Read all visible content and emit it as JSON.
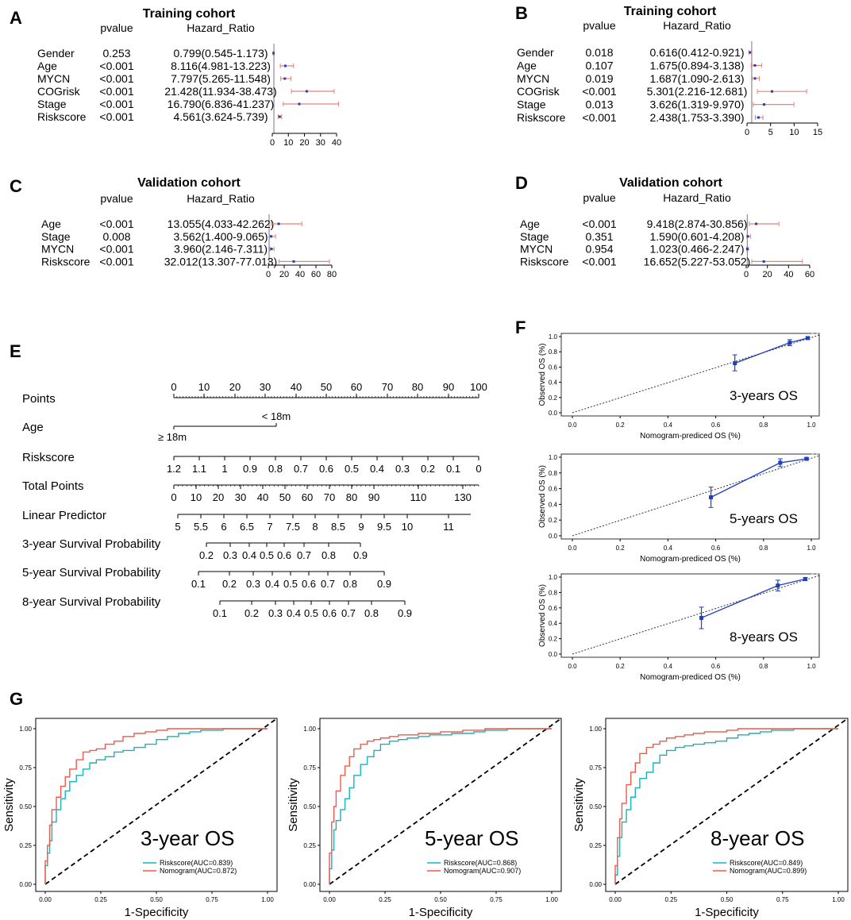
{
  "colors": {
    "ci": "#e8827a",
    "point": "#1f3fbf",
    "cyan": "#17b3bd",
    "red": "#f05a4a",
    "calib": "#1f3fbf"
  },
  "chart_data": [
    {
      "panel": "A",
      "type": "forest",
      "title": "Training cohort",
      "col_p": "pvalue",
      "col_hr": "Hazard_Ratio",
      "xlim": [
        0,
        40
      ],
      "xticks": [
        0,
        10,
        20,
        30,
        40
      ],
      "rows": [
        {
          "label": "Gender",
          "p": "0.253",
          "hr_text": "0.799(0.545-1.173)",
          "hr": 0.799,
          "lo": 0.545,
          "hi": 1.173
        },
        {
          "label": "Age",
          "p": "<0.001",
          "hr_text": "8.116(4.981-13.223)",
          "hr": 8.116,
          "lo": 4.981,
          "hi": 13.223
        },
        {
          "label": "MYCN",
          "p": "<0.001",
          "hr_text": "7.797(5.265-11.548)",
          "hr": 7.797,
          "lo": 5.265,
          "hi": 11.548
        },
        {
          "label": "COGrisk",
          "p": "<0.001",
          "hr_text": "21.428(11.934-38.473)",
          "hr": 21.428,
          "lo": 11.934,
          "hi": 38.473
        },
        {
          "label": "Stage",
          "p": "<0.001",
          "hr_text": "16.790(6.836-41.237)",
          "hr": 16.79,
          "lo": 6.836,
          "hi": 41.237
        },
        {
          "label": "Riskscore",
          "p": "<0.001",
          "hr_text": "4.561(3.624-5.739)",
          "hr": 4.561,
          "lo": 3.624,
          "hi": 5.739
        }
      ]
    },
    {
      "panel": "B",
      "type": "forest",
      "title": "Training cohort",
      "col_p": "pvalue",
      "col_hr": "Hazard_Ratio",
      "xlim": [
        0,
        15
      ],
      "xticks": [
        0,
        5,
        10,
        15
      ],
      "rows": [
        {
          "label": "Gender",
          "p": "0.018",
          "hr_text": "0.616(0.412-0.921)",
          "hr": 0.616,
          "lo": 0.412,
          "hi": 0.921
        },
        {
          "label": "Age",
          "p": "0.107",
          "hr_text": "1.675(0.894-3.138)",
          "hr": 1.675,
          "lo": 0.894,
          "hi": 3.138
        },
        {
          "label": "MYCN",
          "p": "0.019",
          "hr_text": "1.687(1.090-2.613)",
          "hr": 1.687,
          "lo": 1.09,
          "hi": 2.613
        },
        {
          "label": "COGrisk",
          "p": "<0.001",
          "hr_text": "5.301(2.216-12.681)",
          "hr": 5.301,
          "lo": 2.216,
          "hi": 12.681
        },
        {
          "label": "Stage",
          "p": "0.013",
          "hr_text": "3.626(1.319-9.970)",
          "hr": 3.626,
          "lo": 1.319,
          "hi": 9.97
        },
        {
          "label": "Riskscore",
          "p": "<0.001",
          "hr_text": "2.438(1.753-3.390)",
          "hr": 2.438,
          "lo": 1.753,
          "hi": 3.39
        }
      ]
    },
    {
      "panel": "C",
      "type": "forest",
      "title": "Validation cohort",
      "col_p": "pvalue",
      "col_hr": "Hazard_Ratio",
      "xlim": [
        0,
        80
      ],
      "xticks": [
        0,
        20,
        40,
        60,
        80
      ],
      "rows": [
        {
          "label": "Age",
          "p": "<0.001",
          "hr_text": "13.055(4.033-42.262)",
          "hr": 13.055,
          "lo": 4.033,
          "hi": 42.262
        },
        {
          "label": "Stage",
          "p": "0.008",
          "hr_text": "3.562(1.400-9.065)",
          "hr": 3.562,
          "lo": 1.4,
          "hi": 9.065
        },
        {
          "label": "MYCN",
          "p": "<0.001",
          "hr_text": "3.960(2.146-7.311)",
          "hr": 3.96,
          "lo": 2.146,
          "hi": 7.311
        },
        {
          "label": "Riskscore",
          "p": "<0.001",
          "hr_text": "32.012(13.307-77.013)",
          "hr": 32.012,
          "lo": 13.307,
          "hi": 77.013
        }
      ]
    },
    {
      "panel": "D",
      "type": "forest",
      "title": "Validation cohort",
      "col_p": "pvalue",
      "col_hr": "Hazard_Ratio",
      "xlim": [
        0,
        60
      ],
      "xticks": [
        0,
        20,
        40,
        60
      ],
      "rows": [
        {
          "label": "Age",
          "p": "<0.001",
          "hr_text": "9.418(2.874-30.856)",
          "hr": 9.418,
          "lo": 2.874,
          "hi": 30.856
        },
        {
          "label": "Stage",
          "p": "0.351",
          "hr_text": "1.590(0.601-4.208)",
          "hr": 1.59,
          "lo": 0.601,
          "hi": 4.208
        },
        {
          "label": "MYCN",
          "p": "0.954",
          "hr_text": "1.023(0.466-2.247)",
          "hr": 1.023,
          "lo": 0.466,
          "hi": 2.247
        },
        {
          "label": "Riskscore",
          "p": "<0.001",
          "hr_text": "16.652(5.227-53.052)",
          "hr": 16.652,
          "lo": 5.227,
          "hi": 53.052
        }
      ]
    },
    {
      "panel": "E",
      "type": "nomogram",
      "scales": [
        {
          "label": "Points",
          "ticks": [
            "0",
            "10",
            "20",
            "30",
            "40",
            "50",
            "60",
            "70",
            "80",
            "90",
            "100"
          ]
        },
        {
          "label": "Age",
          "ticks": [
            "< 18m",
            "≥ 18m"
          ]
        },
        {
          "label": "Riskscore",
          "ticks": [
            "1.2",
            "1.1",
            "1",
            "0.9",
            "0.8",
            "0.7",
            "0.6",
            "0.5",
            "0.4",
            "0.3",
            "0.2",
            "0.1",
            "0"
          ]
        },
        {
          "label": "Total Points",
          "ticks": [
            "0",
            "10",
            "20",
            "30",
            "40",
            "50",
            "60",
            "70",
            "80",
            "90",
            "110",
            "130"
          ]
        },
        {
          "label": "Linear Predictor",
          "ticks": [
            "5",
            "5.5",
            "6",
            "6.5",
            "7",
            "7.5",
            "8",
            "8.5",
            "9",
            "9.5",
            "10",
            "11"
          ]
        },
        {
          "label": "3-year Survival Probability",
          "ticks": [
            "0.2",
            "0.3",
            "0.4",
            "0.5",
            "0.6",
            "0.7",
            "0.8",
            "0.9"
          ]
        },
        {
          "label": "5-year Survival Probability",
          "ticks": [
            "0.1",
            "0.2",
            "0.3",
            "0.4",
            "0.5",
            "0.6",
            "0.7",
            "0.8",
            "0.9"
          ]
        },
        {
          "label": "8-year Survival Probability",
          "ticks": [
            "0.1",
            "0.2",
            "0.3",
            "0.4",
            "0.5",
            "0.6",
            "0.7",
            "0.8",
            "0.9"
          ]
        }
      ]
    },
    {
      "panel": "F",
      "type": "calibration",
      "xlabel": "Nomogram-prediced OS (%)",
      "ylabel": "Observed OS (%)",
      "xlim": [
        0,
        1
      ],
      "ylim": [
        0,
        1
      ],
      "xticks": [
        "0.0",
        "0.2",
        "0.4",
        "0.6",
        "0.8",
        "1.0"
      ],
      "yticks": [
        "0.0",
        "0.2",
        "0.4",
        "0.6",
        "0.8",
        "1.0"
      ],
      "plots": [
        {
          "label": "3-years OS",
          "points": [
            {
              "x": 0.68,
              "y": 0.65,
              "lo": 0.55,
              "hi": 0.76
            },
            {
              "x": 0.91,
              "y": 0.92,
              "lo": 0.88,
              "hi": 0.96
            },
            {
              "x": 0.985,
              "y": 0.98,
              "lo": 0.965,
              "hi": 0.995
            }
          ]
        },
        {
          "label": "5-years OS",
          "points": [
            {
              "x": 0.58,
              "y": 0.49,
              "lo": 0.36,
              "hi": 0.62
            },
            {
              "x": 0.87,
              "y": 0.93,
              "lo": 0.88,
              "hi": 0.98
            },
            {
              "x": 0.98,
              "y": 0.98,
              "lo": 0.96,
              "hi": 0.995
            }
          ]
        },
        {
          "label": "8-years OS",
          "points": [
            {
              "x": 0.54,
              "y": 0.47,
              "lo": 0.33,
              "hi": 0.61
            },
            {
              "x": 0.86,
              "y": 0.89,
              "lo": 0.82,
              "hi": 0.96
            },
            {
              "x": 0.975,
              "y": 0.975,
              "lo": 0.955,
              "hi": 0.995
            }
          ]
        }
      ]
    },
    {
      "panel": "G",
      "type": "roc",
      "xlabel": "1-Specificity",
      "ylabel": "Sensitivity",
      "ticks": [
        "0.00",
        "0.25",
        "0.50",
        "0.75",
        "1.00"
      ],
      "plots": [
        {
          "label": "3-year OS",
          "series": [
            {
              "name": "Riskscore(AUC=0.839)",
              "color": "cyan",
              "x": [
                0,
                0.01,
                0.02,
                0.03,
                0.05,
                0.07,
                0.09,
                0.11,
                0.14,
                0.17,
                0.2,
                0.23,
                0.27,
                0.31,
                0.35,
                0.4,
                0.45,
                0.5,
                0.55,
                0.6,
                0.65,
                0.7,
                0.8,
                0.9,
                1
              ],
              "y": [
                0,
                0.12,
                0.2,
                0.28,
                0.4,
                0.48,
                0.55,
                0.6,
                0.66,
                0.7,
                0.74,
                0.78,
                0.8,
                0.82,
                0.85,
                0.86,
                0.88,
                0.9,
                0.93,
                0.95,
                0.97,
                0.98,
                0.99,
                1,
                1
              ]
            },
            {
              "name": "Nomogram(AUC=0.872)",
              "color": "red",
              "x": [
                0,
                0.01,
                0.02,
                0.03,
                0.05,
                0.07,
                0.09,
                0.11,
                0.14,
                0.17,
                0.2,
                0.23,
                0.27,
                0.31,
                0.35,
                0.4,
                0.45,
                0.5,
                0.55,
                0.6,
                0.65,
                0.7,
                0.8,
                0.9,
                1
              ],
              "y": [
                0,
                0.15,
                0.25,
                0.38,
                0.48,
                0.56,
                0.63,
                0.69,
                0.74,
                0.8,
                0.85,
                0.86,
                0.87,
                0.9,
                0.92,
                0.95,
                0.97,
                0.98,
                0.99,
                1,
                1,
                1,
                1,
                1,
                1
              ]
            }
          ]
        },
        {
          "label": "5-year OS",
          "series": [
            {
              "name": "Riskscore(AUC=0.868)",
              "color": "cyan",
              "x": [
                0,
                0.01,
                0.02,
                0.03,
                0.05,
                0.07,
                0.09,
                0.11,
                0.14,
                0.17,
                0.2,
                0.23,
                0.27,
                0.31,
                0.35,
                0.4,
                0.45,
                0.5,
                0.55,
                0.6,
                0.65,
                0.7,
                0.8,
                0.9,
                1
              ],
              "y": [
                0,
                0.1,
                0.22,
                0.35,
                0.41,
                0.48,
                0.55,
                0.62,
                0.7,
                0.77,
                0.82,
                0.86,
                0.9,
                0.92,
                0.93,
                0.94,
                0.95,
                0.96,
                0.96,
                0.97,
                0.97,
                0.98,
                0.99,
                1,
                1
              ]
            },
            {
              "name": "Nomogram(AUC=0.907)",
              "color": "red",
              "x": [
                0,
                0.01,
                0.02,
                0.03,
                0.05,
                0.07,
                0.09,
                0.11,
                0.14,
                0.17,
                0.2,
                0.23,
                0.27,
                0.31,
                0.35,
                0.4,
                0.45,
                0.5,
                0.55,
                0.6,
                0.65,
                0.7,
                0.8,
                0.9,
                1
              ],
              "y": [
                0,
                0.2,
                0.4,
                0.5,
                0.6,
                0.7,
                0.76,
                0.82,
                0.87,
                0.9,
                0.92,
                0.93,
                0.94,
                0.95,
                0.96,
                0.96,
                0.97,
                0.97,
                0.98,
                0.98,
                0.99,
                0.99,
                1,
                1,
                1
              ]
            }
          ]
        },
        {
          "label": "8-year OS",
          "series": [
            {
              "name": "Riskscore(AUC=0.849)",
              "color": "cyan",
              "x": [
                0,
                0.01,
                0.02,
                0.03,
                0.05,
                0.07,
                0.09,
                0.11,
                0.14,
                0.17,
                0.2,
                0.23,
                0.27,
                0.31,
                0.35,
                0.4,
                0.45,
                0.5,
                0.55,
                0.6,
                0.65,
                0.7,
                0.8,
                0.9,
                1
              ],
              "y": [
                0,
                0.06,
                0.18,
                0.3,
                0.4,
                0.48,
                0.56,
                0.62,
                0.68,
                0.72,
                0.78,
                0.83,
                0.86,
                0.88,
                0.89,
                0.9,
                0.91,
                0.92,
                0.94,
                0.96,
                0.97,
                0.98,
                0.99,
                1,
                1
              ]
            },
            {
              "name": "Nomogram(AUC=0.899)",
              "color": "red",
              "x": [
                0,
                0.01,
                0.02,
                0.03,
                0.05,
                0.07,
                0.09,
                0.11,
                0.14,
                0.17,
                0.2,
                0.23,
                0.27,
                0.31,
                0.35,
                0.4,
                0.45,
                0.5,
                0.55,
                0.6,
                0.65,
                0.7,
                0.8,
                0.9,
                1
              ],
              "y": [
                0,
                0.12,
                0.3,
                0.42,
                0.52,
                0.64,
                0.72,
                0.78,
                0.84,
                0.88,
                0.9,
                0.92,
                0.94,
                0.95,
                0.96,
                0.97,
                0.98,
                0.98,
                0.99,
                1,
                1,
                1,
                1,
                1,
                1
              ]
            }
          ]
        }
      ]
    }
  ]
}
